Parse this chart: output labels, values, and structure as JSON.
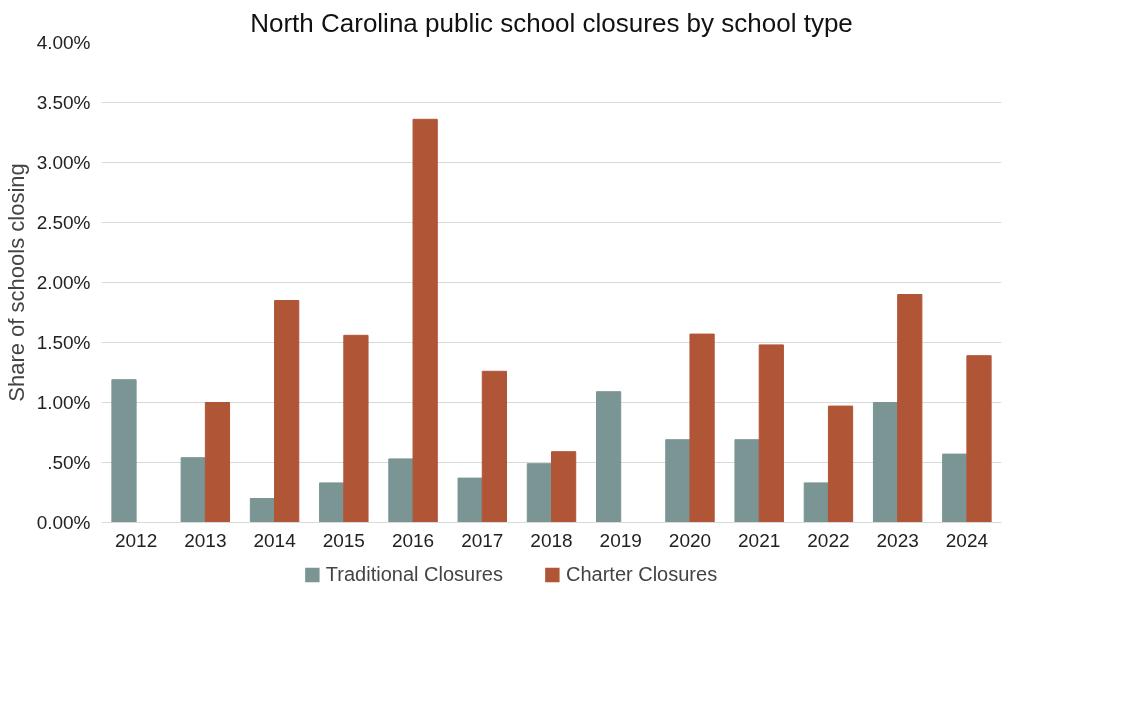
{
  "chart_data": {
    "type": "bar",
    "title": "North Carolina public school closures by school type",
    "ylabel": "Share of schools closing",
    "categories": [
      "2012",
      "2013",
      "2014",
      "2015",
      "2016",
      "2017",
      "2018",
      "2019",
      "2020",
      "2021",
      "2022",
      "2023",
      "2024"
    ],
    "series": [
      {
        "name": "Traditional Closures",
        "color": "#7a9594",
        "values": [
          1.19,
          0.54,
          0.2,
          0.33,
          0.53,
          0.37,
          0.49,
          1.09,
          0.69,
          0.69,
          0.33,
          1.0,
          0.57
        ]
      },
      {
        "name": "Charter Closures",
        "color": "#b15537",
        "values": [
          0,
          1.0,
          1.85,
          1.56,
          3.36,
          1.26,
          0.59,
          0,
          1.57,
          1.48,
          0.97,
          1.9,
          1.39
        ]
      }
    ],
    "ylim": [
      0,
      4
    ],
    "yticks": [
      {
        "value": 0,
        "label": "0.00%"
      },
      {
        "value": 0.5,
        "label": ".50%"
      },
      {
        "value": 1,
        "label": "1.00%"
      },
      {
        "value": 1.5,
        "label": "1.50%"
      },
      {
        "value": 2,
        "label": "2.00%"
      },
      {
        "value": 2.5,
        "label": "2.50%"
      },
      {
        "value": 3,
        "label": "3.00%"
      },
      {
        "value": 3.5,
        "label": "3.50%"
      },
      {
        "value": 4,
        "label": "4.00%"
      }
    ],
    "grid": "y",
    "legend": "bottom"
  }
}
